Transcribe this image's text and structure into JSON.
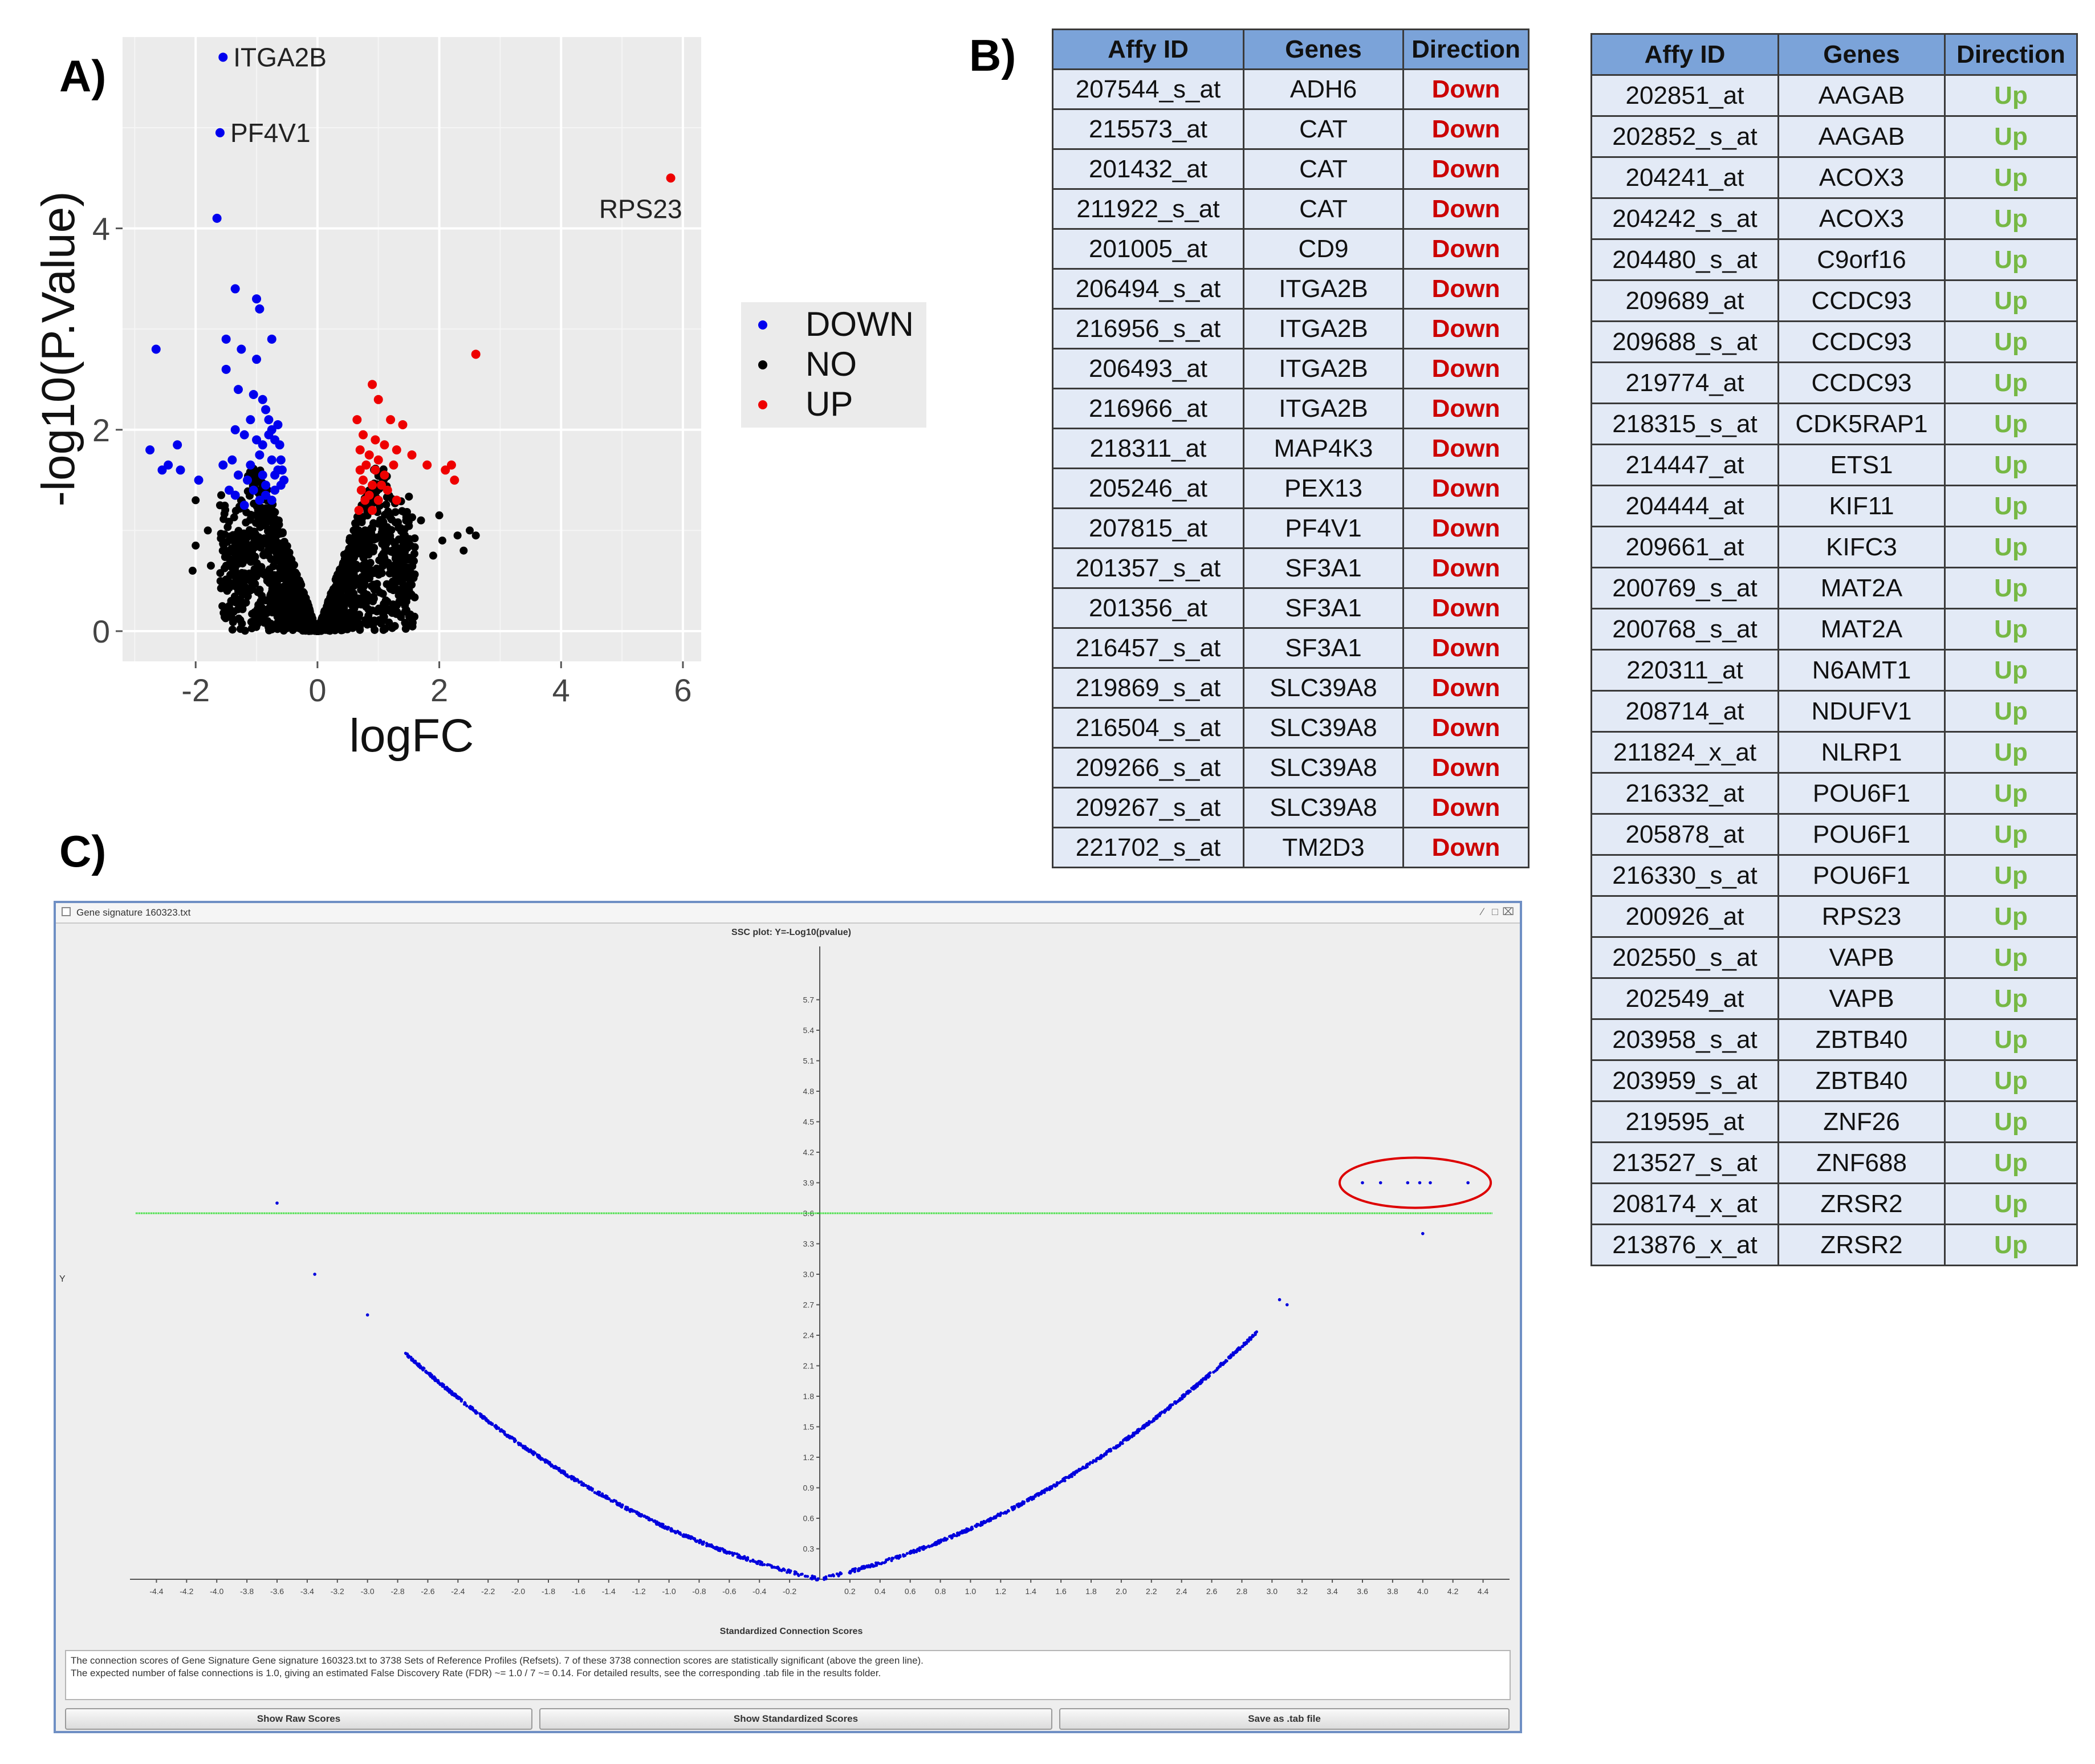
{
  "panels": {
    "a": "A)",
    "b": "B)",
    "c": "C)"
  },
  "chart_data": [
    {
      "type": "scatter",
      "panel": "A)",
      "xlabel": "logFC",
      "ylabel": "-log10(P.Value)",
      "xlim": [
        -3.2,
        6.3
      ],
      "ylim": [
        -0.3,
        5.9
      ],
      "xticks": [
        -2,
        0,
        2,
        4,
        6
      ],
      "yticks": [
        0,
        2,
        4
      ],
      "grid": true,
      "legend_position": "right",
      "colors": {
        "DOWN": "#0000ee",
        "NO": "#000000",
        "UP": "#ee0000"
      },
      "series": [
        {
          "name": "DOWN",
          "points": [
            [
              -1.55,
              5.7
            ],
            [
              -1.6,
              4.95
            ],
            [
              -1.65,
              4.1
            ],
            [
              -1.35,
              3.4
            ],
            [
              -1.0,
              3.3
            ],
            [
              -0.95,
              3.2
            ],
            [
              -2.65,
              2.8
            ],
            [
              -1.5,
              2.9
            ],
            [
              -1.25,
              2.8
            ],
            [
              -0.75,
              2.9
            ],
            [
              -1.5,
              2.6
            ],
            [
              -1.0,
              2.7
            ],
            [
              -1.3,
              2.4
            ],
            [
              -1.05,
              2.35
            ],
            [
              -0.9,
              2.3
            ],
            [
              -0.85,
              2.2
            ],
            [
              -1.1,
              2.1
            ],
            [
              -1.35,
              2.0
            ],
            [
              -1.2,
              1.95
            ],
            [
              -2.75,
              1.8
            ],
            [
              -2.3,
              1.85
            ],
            [
              -2.45,
              1.65
            ],
            [
              -2.55,
              1.6
            ],
            [
              -2.25,
              1.6
            ],
            [
              -1.95,
              1.5
            ],
            [
              -1.55,
              1.65
            ],
            [
              -1.4,
              1.7
            ],
            [
              -1.3,
              1.55
            ],
            [
              -1.45,
              1.4
            ],
            [
              -1.15,
              1.5
            ],
            [
              -1.0,
              1.9
            ],
            [
              -0.8,
              1.95
            ],
            [
              -0.7,
              1.9
            ],
            [
              -0.95,
              1.75
            ],
            [
              -0.75,
              1.7
            ],
            [
              -0.65,
              1.6
            ],
            [
              -0.9,
              1.55
            ],
            [
              -0.85,
              1.45
            ],
            [
              -1.05,
              1.4
            ],
            [
              -0.7,
              1.4
            ],
            [
              -0.6,
              1.45
            ],
            [
              -0.75,
              1.3
            ],
            [
              -0.95,
              1.3
            ],
            [
              -0.65,
              2.05
            ],
            [
              -0.8,
              2.1
            ],
            [
              -0.6,
              1.7
            ],
            [
              -0.55,
              1.5
            ],
            [
              -0.7,
              1.55
            ],
            [
              -1.2,
              1.25
            ],
            [
              -0.85,
              1.35
            ],
            [
              -1.35,
              1.35
            ],
            [
              -1.1,
              1.65
            ],
            [
              -0.75,
              2.0
            ],
            [
              -0.62,
              1.85
            ],
            [
              -0.9,
              1.85
            ],
            [
              -0.58,
              1.6
            ]
          ],
          "labels": [
            {
              "text": "ITGA2B",
              "x": -1.55,
              "y": 5.7
            },
            {
              "text": "PF4V1",
              "x": -1.6,
              "y": 4.95
            }
          ]
        },
        {
          "name": "NO"
        },
        {
          "name": "UP",
          "points": [
            [
              5.8,
              4.5
            ],
            [
              2.6,
              2.75
            ],
            [
              0.9,
              2.45
            ],
            [
              1.0,
              2.3
            ],
            [
              0.65,
              2.1
            ],
            [
              1.2,
              2.1
            ],
            [
              1.4,
              2.05
            ],
            [
              0.75,
              1.95
            ],
            [
              0.95,
              1.9
            ],
            [
              1.1,
              1.85
            ],
            [
              0.7,
              1.8
            ],
            [
              1.3,
              1.8
            ],
            [
              1.55,
              1.75
            ],
            [
              0.85,
              1.75
            ],
            [
              1.0,
              1.7
            ],
            [
              0.8,
              1.65
            ],
            [
              1.25,
              1.65
            ],
            [
              0.7,
              1.6
            ],
            [
              0.95,
              1.6
            ],
            [
              1.1,
              1.55
            ],
            [
              2.2,
              1.65
            ],
            [
              2.1,
              1.6
            ],
            [
              2.25,
              1.5
            ],
            [
              0.75,
              1.5
            ],
            [
              0.9,
              1.45
            ],
            [
              1.05,
              1.45
            ],
            [
              0.72,
              1.4
            ],
            [
              1.15,
              1.4
            ],
            [
              0.85,
              1.35
            ],
            [
              1.3,
              1.3
            ],
            [
              0.78,
              1.3
            ],
            [
              1.0,
              1.3
            ],
            [
              1.8,
              1.65
            ],
            [
              0.68,
              1.2
            ],
            [
              0.9,
              1.2
            ]
          ],
          "labels": [
            {
              "text": "RPS23",
              "x": 5.8,
              "y": 4.5
            }
          ]
        }
      ]
    },
    {
      "type": "scatter",
      "panel": "C)",
      "title": "SSC plot: Y=-Log10(pvalue)",
      "xlabel": "Standardized Connection Scores",
      "ylabel": "Y",
      "xlim": [
        -4.5,
        4.5
      ],
      "ylim": [
        0,
        6.0
      ],
      "xticks": [
        "-4.4",
        "-4.2",
        "-4.0",
        "-3.8",
        "-3.6",
        "-3.4",
        "-3.2",
        "-3.0",
        "-2.8",
        "-2.6",
        "-2.4",
        "-2.2",
        "-2.0",
        "-1.8",
        "-1.6",
        "-1.4",
        "-1.2",
        "-1.0",
        "-0.8",
        "-0.6",
        "-0.4",
        "-0.2",
        "0.2",
        "0.4",
        "0.6",
        "0.8",
        "1.0",
        "1.2",
        "1.4",
        "1.6",
        "1.8",
        "2.0",
        "2.2",
        "2.4",
        "2.6",
        "2.8",
        "3.0",
        "3.2",
        "3.4",
        "3.6",
        "3.8",
        "4.0",
        "4.2",
        "4.4"
      ],
      "yticks": [
        "0.3",
        "0.6",
        "0.9",
        "1.2",
        "1.5",
        "1.8",
        "2.1",
        "2.4",
        "2.7",
        "3.0",
        "3.3",
        "3.6",
        "3.9",
        "4.2",
        "4.5",
        "4.8",
        "5.1",
        "5.4",
        "5.7"
      ],
      "threshold_y": 3.6,
      "threshold_color": "#33dd33",
      "point_color": "#0000dd",
      "highlight_color": "#dd0000",
      "points": [
        [
          -3.6,
          3.7
        ],
        [
          -3.35,
          3.0
        ],
        [
          -3.0,
          2.6
        ],
        [
          3.05,
          2.75
        ],
        [
          3.1,
          2.7
        ],
        [
          4.0,
          3.4
        ],
        [
          3.6,
          3.9
        ],
        [
          3.72,
          3.9
        ],
        [
          3.9,
          3.9
        ],
        [
          3.98,
          3.9
        ],
        [
          4.05,
          3.9
        ],
        [
          4.3,
          3.9
        ]
      ],
      "highlighted": [
        [
          3.6,
          3.9
        ],
        [
          3.72,
          3.9
        ],
        [
          3.9,
          3.9
        ],
        [
          3.98,
          3.9
        ],
        [
          4.05,
          3.9
        ],
        [
          4.3,
          3.9
        ]
      ]
    }
  ],
  "table1": {
    "headers": [
      "Affy ID",
      "Genes",
      "Direction"
    ],
    "rows": [
      [
        "207544_s_at",
        "ADH6",
        "Down"
      ],
      [
        "215573_at",
        "CAT",
        "Down"
      ],
      [
        "201432_at",
        "CAT",
        "Down"
      ],
      [
        "211922_s_at",
        "CAT",
        "Down"
      ],
      [
        "201005_at",
        "CD9",
        "Down"
      ],
      [
        "206494_s_at",
        "ITGA2B",
        "Down"
      ],
      [
        "216956_s_at",
        "ITGA2B",
        "Down"
      ],
      [
        "206493_at",
        "ITGA2B",
        "Down"
      ],
      [
        "216966_at",
        "ITGA2B",
        "Down"
      ],
      [
        "218311_at",
        "MAP4K3",
        "Down"
      ],
      [
        "205246_at",
        "PEX13",
        "Down"
      ],
      [
        "207815_at",
        "PF4V1",
        "Down"
      ],
      [
        "201357_s_at",
        "SF3A1",
        "Down"
      ],
      [
        "201356_at",
        "SF3A1",
        "Down"
      ],
      [
        "216457_s_at",
        "SF3A1",
        "Down"
      ],
      [
        "219869_s_at",
        "SLC39A8",
        "Down"
      ],
      [
        "216504_s_at",
        "SLC39A8",
        "Down"
      ],
      [
        "209266_s_at",
        "SLC39A8",
        "Down"
      ],
      [
        "209267_s_at",
        "SLC39A8",
        "Down"
      ],
      [
        "221702_s_at",
        "TM2D3",
        "Down"
      ]
    ]
  },
  "table2": {
    "headers": [
      "Affy ID",
      "Genes",
      "Direction"
    ],
    "rows": [
      [
        "202851_at",
        "AAGAB",
        "Up"
      ],
      [
        "202852_s_at",
        "AAGAB",
        "Up"
      ],
      [
        "204241_at",
        "ACOX3",
        "Up"
      ],
      [
        "204242_s_at",
        "ACOX3",
        "Up"
      ],
      [
        "204480_s_at",
        "C9orf16",
        "Up"
      ],
      [
        "209689_at",
        "CCDC93",
        "Up"
      ],
      [
        "209688_s_at",
        "CCDC93",
        "Up"
      ],
      [
        "219774_at",
        "CCDC93",
        "Up"
      ],
      [
        "218315_s_at",
        "CDK5RAP1",
        "Up"
      ],
      [
        "214447_at",
        "ETS1",
        "Up"
      ],
      [
        "204444_at",
        "KIF11",
        "Up"
      ],
      [
        "209661_at",
        "KIFC3",
        "Up"
      ],
      [
        "200769_s_at",
        "MAT2A",
        "Up"
      ],
      [
        "200768_s_at",
        "MAT2A",
        "Up"
      ],
      [
        "220311_at",
        "N6AMT1",
        "Up"
      ],
      [
        "208714_at",
        "NDUFV1",
        "Up"
      ],
      [
        "211824_x_at",
        "NLRP1",
        "Up"
      ],
      [
        "216332_at",
        "POU6F1",
        "Up"
      ],
      [
        "205878_at",
        "POU6F1",
        "Up"
      ],
      [
        "216330_s_at",
        "POU6F1",
        "Up"
      ],
      [
        "200926_at",
        "RPS23",
        "Up"
      ],
      [
        "202550_s_at",
        "VAPB",
        "Up"
      ],
      [
        "202549_at",
        "VAPB",
        "Up"
      ],
      [
        "203958_s_at",
        "ZBTB40",
        "Up"
      ],
      [
        "203959_s_at",
        "ZBTB40",
        "Up"
      ],
      [
        "219595_at",
        "ZNF26",
        "Up"
      ],
      [
        "213527_s_at",
        "ZNF688",
        "Up"
      ],
      [
        "208174_x_at",
        "ZRSR2",
        "Up"
      ],
      [
        "213876_x_at",
        "ZRSR2",
        "Up"
      ]
    ]
  },
  "app_window": {
    "title": "Gene signature 160323.txt",
    "message_line1": "The connection scores of Gene Signature Gene signature 160323.txt to 3738 Sets of Reference Profiles (Refsets). 7 of these 3738 connection scores are statistically significant (above the green line).",
    "message_line2": "The expected number of false connections is 1.0, giving an estimated False Discovery Rate (FDR) ~= 1.0 / 7 ~= 0.14. For detailed results, see the corresponding .tab file in the results folder.",
    "buttons": [
      "Show Raw Scores",
      "Show Standardized Scores",
      "Save as .tab file"
    ]
  }
}
